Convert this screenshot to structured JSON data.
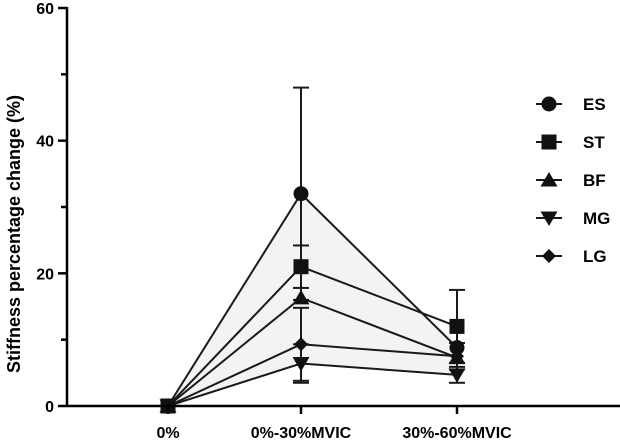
{
  "chart_data": {
    "type": "line",
    "categories": [
      "0%",
      "0%-30%MVIC",
      "30%-60%MVIC"
    ],
    "ylabel": "Stiffness percentage change (%)",
    "xlabel": "",
    "ylim": [
      0,
      60
    ],
    "yticks": [
      0,
      20,
      40,
      60
    ],
    "grid": false,
    "legend_position": "right",
    "series": [
      {
        "name": "ES",
        "marker": "circle",
        "values": [
          0,
          32.0,
          8.8
        ],
        "errors": [
          0,
          16.0,
          0
        ]
      },
      {
        "name": "ST",
        "marker": "square",
        "values": [
          0,
          21.0,
          12.0
        ],
        "errors": [
          0,
          3.2,
          5.5
        ]
      },
      {
        "name": "BF",
        "marker": "triangle-up",
        "values": [
          0,
          16.3,
          7.3
        ],
        "errors": [
          0,
          0,
          0
        ]
      },
      {
        "name": "MG",
        "marker": "triangle-down",
        "values": [
          0,
          6.4,
          4.7
        ],
        "errors": [
          0,
          2.9,
          1.2
        ]
      },
      {
        "name": "LG",
        "marker": "diamond",
        "values": [
          0,
          9.3,
          7.5
        ],
        "errors": [
          0,
          5.5,
          2.0
        ]
      }
    ],
    "band": {
      "upper_series": "ES",
      "lower_series": "MG",
      "color": "#f3f3f3"
    },
    "colors": {
      "line": "#1a1a1a",
      "marker": "#111111",
      "axis": "#000000"
    }
  }
}
